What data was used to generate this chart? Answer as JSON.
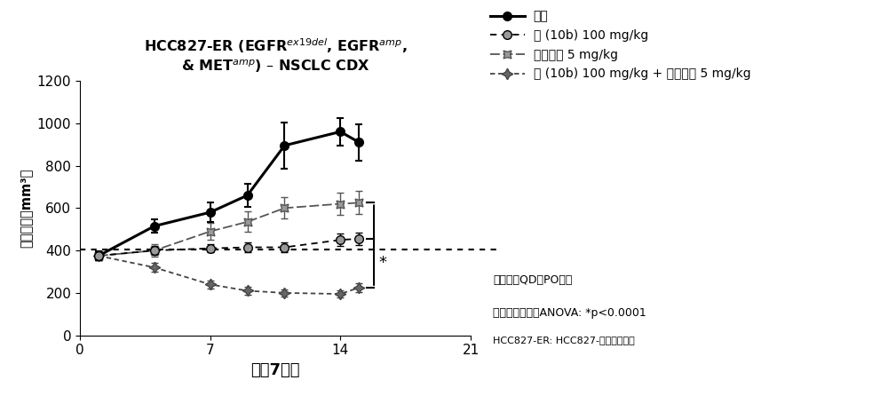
{
  "title": "HCC827-ER (EGFR$^{ex19del}$, EGFR$^{amp}$,\n& MET$^{amp}$) – NSCLC CDX",
  "xlabel": "治留7天数",
  "ylabel": "肿皘体积（mm³）",
  "xlim": [
    0,
    21
  ],
  "ylim": [
    0,
    1200
  ],
  "xticks": [
    0,
    7,
    14,
    21
  ],
  "yticks": [
    0,
    200,
    400,
    600,
    800,
    1000,
    1200
  ],
  "dotted_line_y": 405,
  "series": {
    "vehicle": {
      "label": "载剂",
      "x": [
        1,
        4,
        7,
        9,
        11,
        14,
        15
      ],
      "y": [
        375,
        515,
        580,
        660,
        895,
        960,
        910
      ],
      "yerr": [
        20,
        30,
        45,
        55,
        110,
        65,
        85
      ]
    },
    "compound10b": {
      "label": "式 (10b) 100 mg/kg",
      "x": [
        1,
        4,
        7,
        9,
        11,
        14,
        15
      ],
      "y": [
        375,
        400,
        410,
        415,
        415,
        450,
        455
      ],
      "yerr": [
        20,
        22,
        20,
        22,
        22,
        28,
        28
      ]
    },
    "osimertinib": {
      "label": "奥希替尼 5 mg/kg",
      "x": [
        1,
        4,
        7,
        9,
        11,
        14,
        15
      ],
      "y": [
        375,
        400,
        490,
        535,
        600,
        620,
        625
      ],
      "yerr": [
        20,
        28,
        40,
        48,
        50,
        52,
        55
      ]
    },
    "combo": {
      "label": "式 (10b) 100 mg/kg + 奥希替尼 5 mg/kg",
      "x": [
        1,
        4,
        7,
        9,
        11,
        14,
        15
      ],
      "y": [
        375,
        320,
        240,
        210,
        200,
        195,
        225
      ],
      "yerr": [
        20,
        22,
        18,
        18,
        18,
        18,
        22
      ]
    }
  },
  "bracket_x": 15.8,
  "bracket_y_top": 625,
  "bracket_y_mid": 455,
  "bracket_y_bot": 225,
  "footnote1": "所有组均QD，PO给药",
  "footnote2": "双因素重复测量ANOVA: *p<0.0001",
  "footnote3": "HCC827-ER: HCC827-厤洛替尼抗性",
  "background_color": "#ffffff"
}
